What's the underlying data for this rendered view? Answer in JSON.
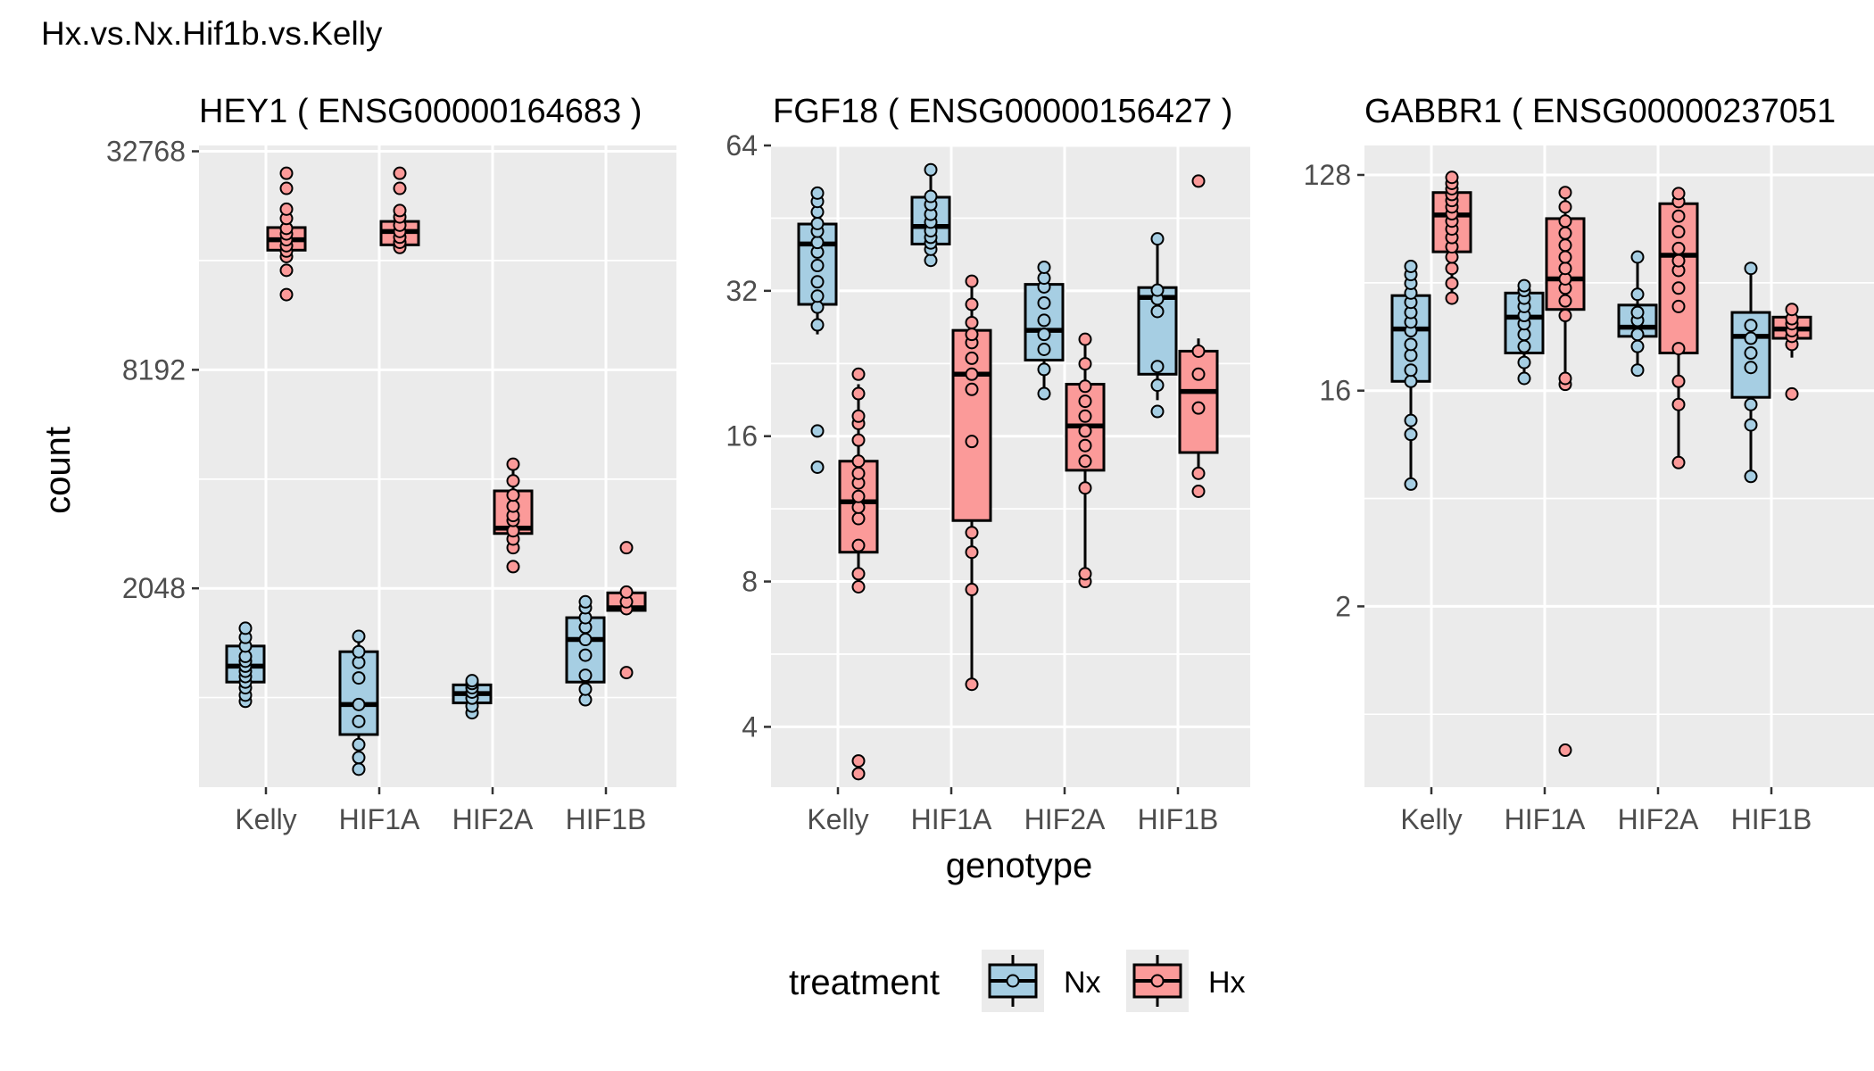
{
  "title": "Hx.vs.Nx.Hif1b.vs.Kelly",
  "x_axis_title": "genotype",
  "y_axis_title": "count",
  "legend_title": "treatment",
  "chart_data": [
    {
      "type": "box",
      "title": "HEY1 ( ENSG00000164683 )",
      "y_scale": "log2",
      "ylim": [
        580,
        34000
      ],
      "yticks": [
        2048,
        8192,
        32768
      ],
      "ytick_labels": [
        "2048",
        "8192",
        "32768"
      ],
      "categories": [
        "Kelly",
        "HIF1A",
        "HIF2A",
        "HIF1B"
      ],
      "series": [
        {
          "name": "Nx",
          "boxes": [
            {
              "category": "Kelly",
              "lower": 1070,
              "q1": 1130,
              "median": 1250,
              "q3": 1420,
              "upper": 1590,
              "points": [
                1000,
                1040,
                1090,
                1130,
                1170,
                1210,
                1250,
                1290,
                1330,
                1420,
                1500,
                1590
              ]
            },
            {
              "category": "HIF1A",
              "lower": 700,
              "q1": 810,
              "median": 980,
              "q3": 1370,
              "upper": 1510,
              "points": [
                650,
                700,
                760,
                880,
                980,
                1160,
                1280,
                1370,
                1510
              ]
            },
            {
              "category": "HIF2A",
              "lower": 970,
              "q1": 990,
              "median": 1050,
              "q3": 1110,
              "upper": 1140,
              "points": [
                930,
                970,
                1020,
                1060,
                1090,
                1120,
                1140
              ]
            },
            {
              "category": "HIF1B",
              "lower": 1020,
              "q1": 1130,
              "median": 1480,
              "q3": 1700,
              "upper": 1880,
              "points": [
                1010,
                1080,
                1180,
                1340,
                1480,
                1600,
                1700,
                1810,
                1880
              ]
            }
          ]
        },
        {
          "name": "Hx",
          "boxes": [
            {
              "category": "Kelly",
              "lower": 16800,
              "q1": 17500,
              "median": 18700,
              "q3": 20200,
              "upper": 22000,
              "points": [
                13200,
                15400,
                16800,
                17400,
                18000,
                18700,
                19400,
                20100,
                21400,
                22700,
                25900,
                28500
              ]
            },
            {
              "category": "HIF1A",
              "lower": 17700,
              "q1": 18100,
              "median": 19700,
              "q3": 21000,
              "upper": 22500,
              "points": [
                17800,
                18400,
                19000,
                19700,
                20500,
                21600,
                22500,
                25900,
                28500
              ]
            },
            {
              "category": "HIF2A",
              "lower": 2700,
              "q1": 2900,
              "median": 3000,
              "q3": 3800,
              "upper": 4500,
              "points": [
                2350,
                2650,
                2800,
                2950,
                3150,
                3250,
                3450,
                3700,
                4050,
                4500
              ]
            },
            {
              "category": "HIF1B",
              "lower": 1750,
              "q1": 1780,
              "median": 1810,
              "q3": 1990,
              "upper": 2000,
              "points": [
                1200,
                1800,
                1880,
                2000,
                2650
              ]
            }
          ]
        }
      ]
    },
    {
      "type": "box",
      "title": "FGF18 ( ENSG00000156427 )",
      "y_scale": "log2",
      "ylim": [
        3.0,
        64.0
      ],
      "yticks": [
        4,
        8,
        16,
        32,
        64
      ],
      "ytick_labels": [
        "4",
        "8",
        "16",
        "32",
        "64"
      ],
      "categories": [
        "Kelly",
        "HIF1A",
        "HIF2A",
        "HIF1B"
      ],
      "series": [
        {
          "name": "Nx",
          "boxes": [
            {
              "category": "Kelly",
              "lower": 26.0,
              "q1": 30.0,
              "median": 40.0,
              "q3": 44.0,
              "upper": 51.0,
              "points": [
                13.8,
                16.4,
                27.2,
                29.6,
                31.2,
                33.4,
                36.1,
                38.5,
                40.3,
                42.5,
                44.1,
                46.6,
                49.0,
                51.0
              ]
            },
            {
              "category": "HIF1A",
              "lower": 37.5,
              "q1": 40.0,
              "median": 43.5,
              "q3": 50.0,
              "upper": 57.0,
              "points": [
                37.0,
                39.0,
                40.2,
                41.3,
                42.6,
                44.4,
                46.1,
                48.3,
                50.2,
                57.0
              ]
            },
            {
              "category": "HIF2A",
              "lower": 19.5,
              "q1": 23.0,
              "median": 26.5,
              "q3": 33.0,
              "upper": 35.5,
              "points": [
                19.6,
                22.0,
                24.2,
                26.0,
                27.8,
                30.2,
                32.6,
                34.0,
                35.8
              ]
            },
            {
              "category": "HIF1B",
              "lower": 19.0,
              "q1": 21.5,
              "median": 31.0,
              "q3": 32.5,
              "upper": 41.0,
              "points": [
                18.0,
                20.4,
                22.3,
                29.0,
                30.8,
                32.1,
                41.0
              ]
            }
          ]
        },
        {
          "name": "Hx",
          "boxes": [
            {
              "category": "Kelly",
              "lower": 8.0,
              "q1": 9.2,
              "median": 11.7,
              "q3": 14.2,
              "upper": 20.5,
              "points": [
                3.2,
                3.4,
                7.8,
                8.3,
                9.5,
                10.8,
                11.4,
                12.0,
                12.8,
                13.4,
                14.2,
                15.7,
                17.0,
                17.6,
                19.6,
                21.5
              ]
            },
            {
              "category": "HIF1A",
              "lower": 4.9,
              "q1": 10.7,
              "median": 21.5,
              "q3": 26.5,
              "upper": 33.0,
              "points": [
                4.9,
                7.7,
                9.2,
                10.1,
                15.6,
                20.0,
                21.5,
                23.2,
                25.0,
                26.0,
                27.5,
                30.0,
                33.5
              ]
            },
            {
              "category": "HIF2A",
              "lower": 8.0,
              "q1": 13.6,
              "median": 16.8,
              "q3": 20.5,
              "upper": 25.0,
              "points": [
                8.0,
                8.3,
                12.5,
                14.2,
                15.3,
                16.4,
                17.6,
                18.9,
                20.3,
                22.6,
                25.4
              ]
            },
            {
              "category": "HIF1B",
              "lower": 13.0,
              "q1": 14.8,
              "median": 19.8,
              "q3": 24.0,
              "upper": 25.5,
              "points": [
                12.3,
                13.4,
                18.3,
                21.5,
                24.0,
                54.0
              ]
            }
          ]
        }
      ]
    },
    {
      "type": "box",
      "title": "GABBR1 ( ENSG00000237051",
      "y_scale": "log2",
      "ylim": [
        0.35,
        170
      ],
      "yticks": [
        2,
        16,
        128
      ],
      "ytick_labels": [
        "2",
        "16",
        "128"
      ],
      "categories": [
        "Kelly",
        "HIF1A",
        "HIF2A",
        "HIF1B"
      ],
      "series": [
        {
          "name": "Nx",
          "boxes": [
            {
              "category": "Kelly",
              "lower": 6.5,
              "q1": 17.5,
              "median": 29.0,
              "q3": 40.0,
              "upper": 53.0,
              "points": [
                6.5,
                10.5,
                12.0,
                17.5,
                19.5,
                22.5,
                25.0,
                28.5,
                31.0,
                34.0,
                37.5,
                41.0,
                45.0,
                49.0,
                53.0
              ]
            },
            {
              "category": "HIF1A",
              "lower": 18.0,
              "q1": 23.0,
              "median": 32.5,
              "q3": 41.0,
              "upper": 44.0,
              "points": [
                18.0,
                21.0,
                24.5,
                27.5,
                30.5,
                33.0,
                36.0,
                39.0,
                42.0,
                44.0
              ]
            },
            {
              "category": "HIF2A",
              "lower": 19.5,
              "q1": 27.0,
              "median": 29.5,
              "q3": 36.5,
              "upper": 58.0,
              "points": [
                19.5,
                24.5,
                27.5,
                31.5,
                34.0,
                40.5,
                58.0
              ]
            },
            {
              "category": "HIF1B",
              "lower": 7.0,
              "q1": 15.0,
              "median": 27.0,
              "q3": 34.0,
              "upper": 52.0,
              "points": [
                7.0,
                11.5,
                14.0,
                20.0,
                23.0,
                26.5,
                30.0,
                52.0
              ]
            }
          ]
        },
        {
          "name": "Hx",
          "boxes": [
            {
              "category": "Kelly",
              "lower": 39.0,
              "q1": 61.0,
              "median": 87.0,
              "q3": 108.0,
              "upper": 125.0,
              "points": [
                39.0,
                45.0,
                52.0,
                58.0,
                64.0,
                70.0,
                76.0,
                82.0,
                88.0,
                94.0,
                100.0,
                106.0,
                112.0,
                118.0,
                125.0
              ]
            },
            {
              "category": "HIF1A",
              "lower": 17.0,
              "q1": 35.0,
              "median": 47.0,
              "q3": 84.0,
              "upper": 108.0,
              "points": [
                0.5,
                17.0,
                18.0,
                33.0,
                38.0,
                43.0,
                47.0,
                52.0,
                58.0,
                65.0,
                73.0,
                82.0,
                94.0,
                108.0
              ]
            },
            {
              "category": "HIF2A",
              "lower": 8.0,
              "q1": 23.0,
              "median": 59.0,
              "q3": 97.0,
              "upper": 107.0,
              "points": [
                8.0,
                14.0,
                17.5,
                24.0,
                36.0,
                43.0,
                51.0,
                56.0,
                63.0,
                74.0,
                86.0,
                99.0,
                107.0
              ]
            },
            {
              "category": "HIF1B",
              "lower": 22.0,
              "q1": 26.5,
              "median": 29.0,
              "q3": 32.5,
              "upper": 35.0,
              "points": [
                15.5,
                25.0,
                27.0,
                28.5,
                30.5,
                32.0,
                35.0
              ]
            }
          ]
        }
      ]
    }
  ],
  "legend": {
    "items": [
      {
        "label": "Nx",
        "color": "#a6cee3"
      },
      {
        "label": "Hx",
        "color": "#fb9a99"
      }
    ]
  },
  "colors": {
    "panel_background": "#ebebeb",
    "grid": "#ffffff",
    "tick_text": "#4d4d4d"
  }
}
